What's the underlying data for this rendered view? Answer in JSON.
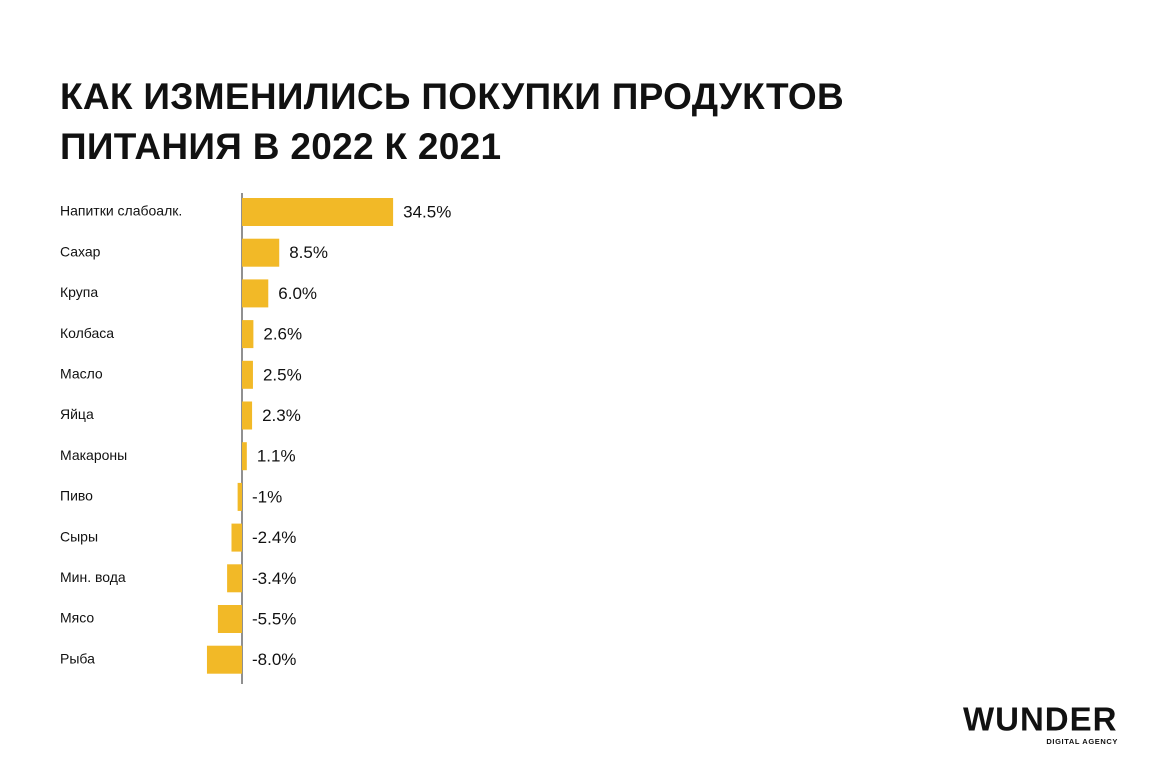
{
  "chart_data": {
    "type": "hbar",
    "title": "КАК ИЗМЕНИЛИСЬ ПОКУПКИ ПРОДУКТОВ ПИТАНИЯ В 2022 К 2021",
    "categories": [
      "Напитки слабоалк.",
      "Сахар",
      "Крупа",
      "Колбаса",
      "Масло",
      "Яйца",
      "Макароны",
      "Пиво",
      "Сыры",
      "Мин. вода",
      "Мясо",
      "Рыба"
    ],
    "values": [
      34.5,
      8.5,
      6.0,
      2.6,
      2.5,
      2.3,
      1.1,
      -1,
      -2.4,
      -3.4,
      -5.5,
      -8.0
    ],
    "value_labels": [
      "34.5%",
      "8.5%",
      "6.0%",
      "2.6%",
      "2.5%",
      "2.3%",
      "1.1%",
      "-1%",
      "-2.4%",
      "-3.4%",
      "-5.5%",
      "-8.0%"
    ],
    "color": "#f2b927"
  },
  "logo": {
    "name": "WUNDER",
    "tagline": "DIGITAL AGENCY"
  }
}
